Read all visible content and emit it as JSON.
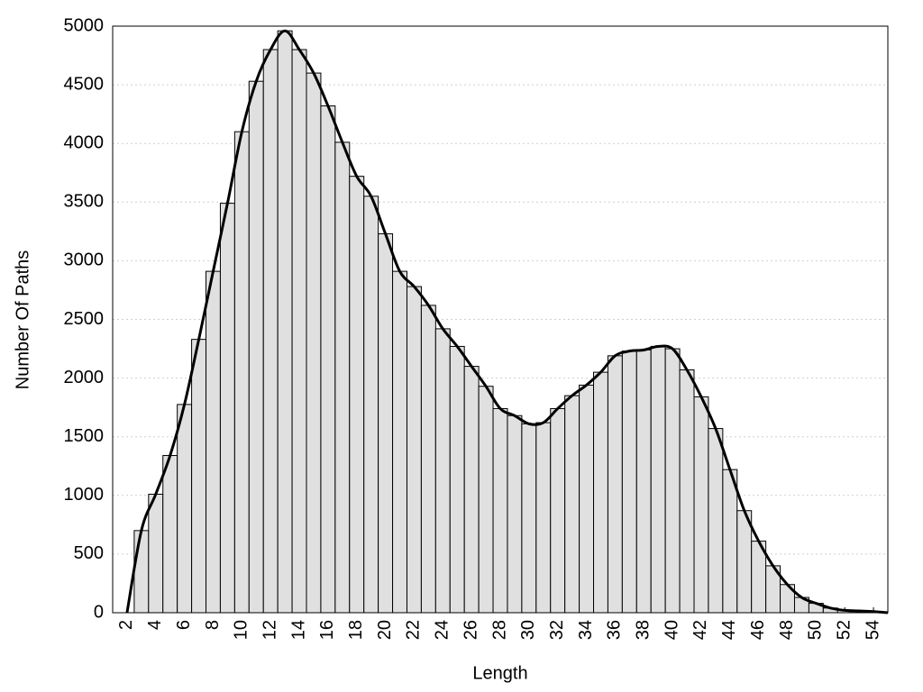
{
  "chart_data": {
    "type": "histogram",
    "xlabel": "Length",
    "ylabel": "Number Of Paths",
    "bins": [
      2.5,
      3.5,
      4.5,
      5.5,
      6.5,
      7.5,
      8.5,
      9.5,
      10.5,
      11.5,
      12.5,
      13.5,
      14.5,
      15.5,
      16.5,
      17.5,
      18.5,
      19.5,
      20.5,
      21.5,
      22.5,
      23.5,
      24.5,
      25.5,
      26.5,
      27.5,
      28.5,
      29.5,
      30.5,
      31.5,
      32.5,
      33.5,
      34.5,
      35.5,
      36.5,
      37.5,
      38.5,
      39.5,
      40.5,
      41.5,
      42.5,
      43.5,
      44.5,
      45.5,
      46.5,
      47.5,
      48.5,
      49.5,
      50.5,
      51.5,
      52.5,
      53.5,
      54.5
    ],
    "counts": [
      700,
      1010,
      1340,
      1775,
      2330,
      2910,
      3490,
      4100,
      4530,
      4800,
      4960,
      4800,
      4600,
      4320,
      4010,
      3720,
      3550,
      3230,
      2910,
      2780,
      2620,
      2420,
      2270,
      2100,
      1930,
      1740,
      1680,
      1610,
      1620,
      1740,
      1850,
      1940,
      2050,
      2190,
      2230,
      2240,
      2270,
      2250,
      2070,
      1840,
      1570,
      1220,
      870,
      610,
      400,
      240,
      130,
      80,
      40,
      20,
      15,
      10
    ],
    "color": "#e0e0e0",
    "line": {
      "color": "#000000",
      "x": [
        2,
        3,
        4,
        5,
        6,
        7,
        8,
        9,
        10,
        11,
        12,
        13,
        14,
        15,
        16,
        17,
        18,
        19,
        20,
        21,
        22,
        23,
        24,
        25,
        26,
        27,
        28,
        29,
        30,
        31,
        32,
        33,
        34,
        35,
        36,
        37,
        38,
        39,
        40,
        41,
        42,
        43,
        44,
        45,
        46,
        47,
        48,
        49,
        50,
        51,
        52,
        53,
        54,
        55
      ],
      "values": [
        0,
        700,
        1010,
        1340,
        1775,
        2330,
        2910,
        3490,
        4100,
        4530,
        4800,
        4960,
        4800,
        4600,
        4320,
        4010,
        3720,
        3550,
        3230,
        2910,
        2780,
        2620,
        2420,
        2270,
        2100,
        1930,
        1740,
        1680,
        1610,
        1620,
        1740,
        1850,
        1940,
        2050,
        2190,
        2230,
        2240,
        2270,
        2250,
        2070,
        1840,
        1570,
        1220,
        870,
        610,
        400,
        240,
        130,
        80,
        40,
        20,
        15,
        10,
        0
      ]
    },
    "xlim": [
      1,
      55
    ],
    "xticks": [
      2,
      4,
      6,
      8,
      10,
      12,
      14,
      16,
      18,
      20,
      22,
      24,
      26,
      28,
      30,
      32,
      34,
      36,
      38,
      40,
      42,
      44,
      46,
      48,
      50,
      52,
      54
    ],
    "ylim": [
      0,
      5000
    ],
    "yticks": [
      0,
      500,
      1000,
      1500,
      2000,
      2500,
      3000,
      3500,
      4000,
      4500,
      5000
    ],
    "grid": true
  }
}
